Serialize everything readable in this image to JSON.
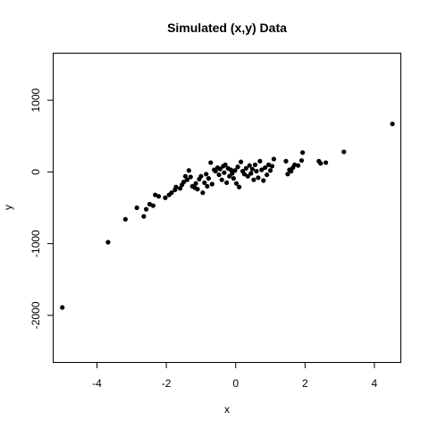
{
  "chart_data": {
    "type": "scatter",
    "title": "Simulated (x,y) Data",
    "xlabel": "x",
    "ylabel": "y",
    "xlim": [
      -5.25,
      4.75
    ],
    "ylim": [
      -2650,
      1650
    ],
    "x_ticks": [
      -4,
      -2,
      0,
      2,
      4
    ],
    "x_tick_labels": [
      "-4",
      "-2",
      "0",
      "2",
      "4"
    ],
    "y_ticks": [
      -2000,
      -1000,
      0,
      1000
    ],
    "y_tick_labels": [
      "-2000",
      "-1000",
      "0",
      "1000"
    ],
    "grid": false,
    "points": [
      {
        "x": -5.0,
        "y": -1890
      },
      {
        "x": -3.68,
        "y": -980
      },
      {
        "x": -3.18,
        "y": -660
      },
      {
        "x": -2.85,
        "y": -500
      },
      {
        "x": -2.65,
        "y": -620
      },
      {
        "x": -2.58,
        "y": -520
      },
      {
        "x": -2.48,
        "y": -450
      },
      {
        "x": -2.38,
        "y": -470
      },
      {
        "x": -2.32,
        "y": -320
      },
      {
        "x": -2.22,
        "y": -340
      },
      {
        "x": -2.03,
        "y": -360
      },
      {
        "x": -1.92,
        "y": -320
      },
      {
        "x": -1.85,
        "y": -290
      },
      {
        "x": -1.75,
        "y": -250
      },
      {
        "x": -1.72,
        "y": -210
      },
      {
        "x": -1.6,
        "y": -230
      },
      {
        "x": -1.55,
        "y": -180
      },
      {
        "x": -1.5,
        "y": -140
      },
      {
        "x": -1.45,
        "y": -60
      },
      {
        "x": -1.4,
        "y": -110
      },
      {
        "x": -1.35,
        "y": 20
      },
      {
        "x": -1.3,
        "y": -70
      },
      {
        "x": -1.25,
        "y": -200
      },
      {
        "x": -1.18,
        "y": -220
      },
      {
        "x": -1.15,
        "y": -160
      },
      {
        "x": -1.1,
        "y": -240
      },
      {
        "x": -1.05,
        "y": -100
      },
      {
        "x": -1.0,
        "y": -60
      },
      {
        "x": -0.95,
        "y": -290
      },
      {
        "x": -0.9,
        "y": -150
      },
      {
        "x": -0.85,
        "y": -30
      },
      {
        "x": -0.82,
        "y": -200
      },
      {
        "x": -0.78,
        "y": -90
      },
      {
        "x": -0.72,
        "y": 130
      },
      {
        "x": -0.68,
        "y": -170
      },
      {
        "x": -0.62,
        "y": 30
      },
      {
        "x": -0.58,
        "y": 10
      },
      {
        "x": -0.52,
        "y": 60
      },
      {
        "x": -0.48,
        "y": -40
      },
      {
        "x": -0.45,
        "y": 40
      },
      {
        "x": -0.4,
        "y": -110
      },
      {
        "x": -0.36,
        "y": 80
      },
      {
        "x": -0.33,
        "y": -10
      },
      {
        "x": -0.3,
        "y": 100
      },
      {
        "x": -0.26,
        "y": -150
      },
      {
        "x": -0.22,
        "y": 50
      },
      {
        "x": -0.18,
        "y": -60
      },
      {
        "x": -0.14,
        "y": 30
      },
      {
        "x": -0.1,
        "y": -20
      },
      {
        "x": -0.06,
        "y": -90
      },
      {
        "x": -0.02,
        "y": 20
      },
      {
        "x": 0.02,
        "y": -160
      },
      {
        "x": 0.06,
        "y": 70
      },
      {
        "x": 0.1,
        "y": -210
      },
      {
        "x": 0.15,
        "y": 140
      },
      {
        "x": 0.2,
        "y": 10
      },
      {
        "x": 0.25,
        "y": -30
      },
      {
        "x": 0.3,
        "y": 50
      },
      {
        "x": 0.35,
        "y": -60
      },
      {
        "x": 0.4,
        "y": 90
      },
      {
        "x": 0.44,
        "y": -20
      },
      {
        "x": 0.48,
        "y": 40
      },
      {
        "x": 0.52,
        "y": -110
      },
      {
        "x": 0.56,
        "y": 100
      },
      {
        "x": 0.6,
        "y": 10
      },
      {
        "x": 0.65,
        "y": -80
      },
      {
        "x": 0.7,
        "y": 150
      },
      {
        "x": 0.75,
        "y": 30
      },
      {
        "x": 0.8,
        "y": -120
      },
      {
        "x": 0.85,
        "y": 60
      },
      {
        "x": 0.9,
        "y": -40
      },
      {
        "x": 0.95,
        "y": 100
      },
      {
        "x": 1.0,
        "y": 20
      },
      {
        "x": 1.05,
        "y": 80
      },
      {
        "x": 1.1,
        "y": 180
      },
      {
        "x": 1.45,
        "y": 150
      },
      {
        "x": 1.5,
        "y": -30
      },
      {
        "x": 1.55,
        "y": 30
      },
      {
        "x": 1.6,
        "y": 10
      },
      {
        "x": 1.65,
        "y": 60
      },
      {
        "x": 1.7,
        "y": 100
      },
      {
        "x": 1.8,
        "y": 90
      },
      {
        "x": 1.9,
        "y": 160
      },
      {
        "x": 1.93,
        "y": 270
      },
      {
        "x": 2.4,
        "y": 150
      },
      {
        "x": 2.45,
        "y": 120
      },
      {
        "x": 2.6,
        "y": 130
      },
      {
        "x": 3.12,
        "y": 280
      },
      {
        "x": 4.52,
        "y": 670
      }
    ]
  }
}
